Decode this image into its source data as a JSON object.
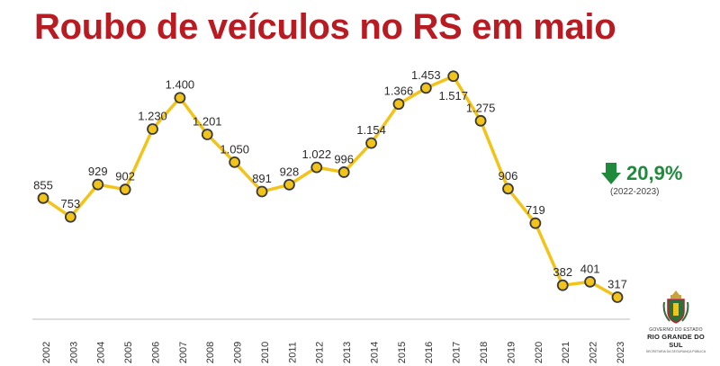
{
  "header": {
    "title": "Roubo de veículos no RS em maio"
  },
  "chart_data": {
    "type": "line",
    "title": "Roubo de veículos no RS em maio",
    "xlabel": "",
    "ylabel": "",
    "categories": [
      "2002",
      "2003",
      "2004",
      "2005",
      "2006",
      "2007",
      "2008",
      "2009",
      "2010",
      "2011",
      "2012",
      "2013",
      "2014",
      "2015",
      "2016",
      "2017",
      "2018",
      "2019",
      "2020",
      "2021",
      "2022",
      "2023"
    ],
    "values": [
      855,
      753,
      929,
      902,
      1230,
      1400,
      1201,
      1050,
      891,
      928,
      1022,
      996,
      1154,
      1366,
      1453,
      1517,
      1275,
      906,
      719,
      382,
      401,
      317
    ],
    "data_labels": [
      "855",
      "753",
      "929",
      "902",
      "1.230",
      "1.400",
      "1.201",
      "1.050",
      "891",
      "928",
      "1.022",
      "996",
      "1.154",
      "1.366",
      "1.453",
      "1.517",
      "1.275",
      "906",
      "719",
      "382",
      "401",
      "317"
    ],
    "ylim": [
      300,
      1550
    ],
    "grid": false,
    "legend": "none",
    "colors": {
      "line": "#f2c318",
      "marker_fill": "#f2c318",
      "marker_stroke": "#3a3a3a",
      "baseline": "#bdbdbd"
    }
  },
  "change": {
    "value": "20,9%",
    "period": "(2022-2023)",
    "icon": "arrow-down-icon",
    "color": "#1f8a3b"
  },
  "logo": {
    "line1": "GOVERNO DO ESTADO",
    "line2": "RIO GRANDE DO SUL",
    "line3": "SECRETARIA DA SEGURANÇA PÚBLICA",
    "icon": "state-crest-icon"
  },
  "colors": {
    "title": "#b81c22"
  }
}
